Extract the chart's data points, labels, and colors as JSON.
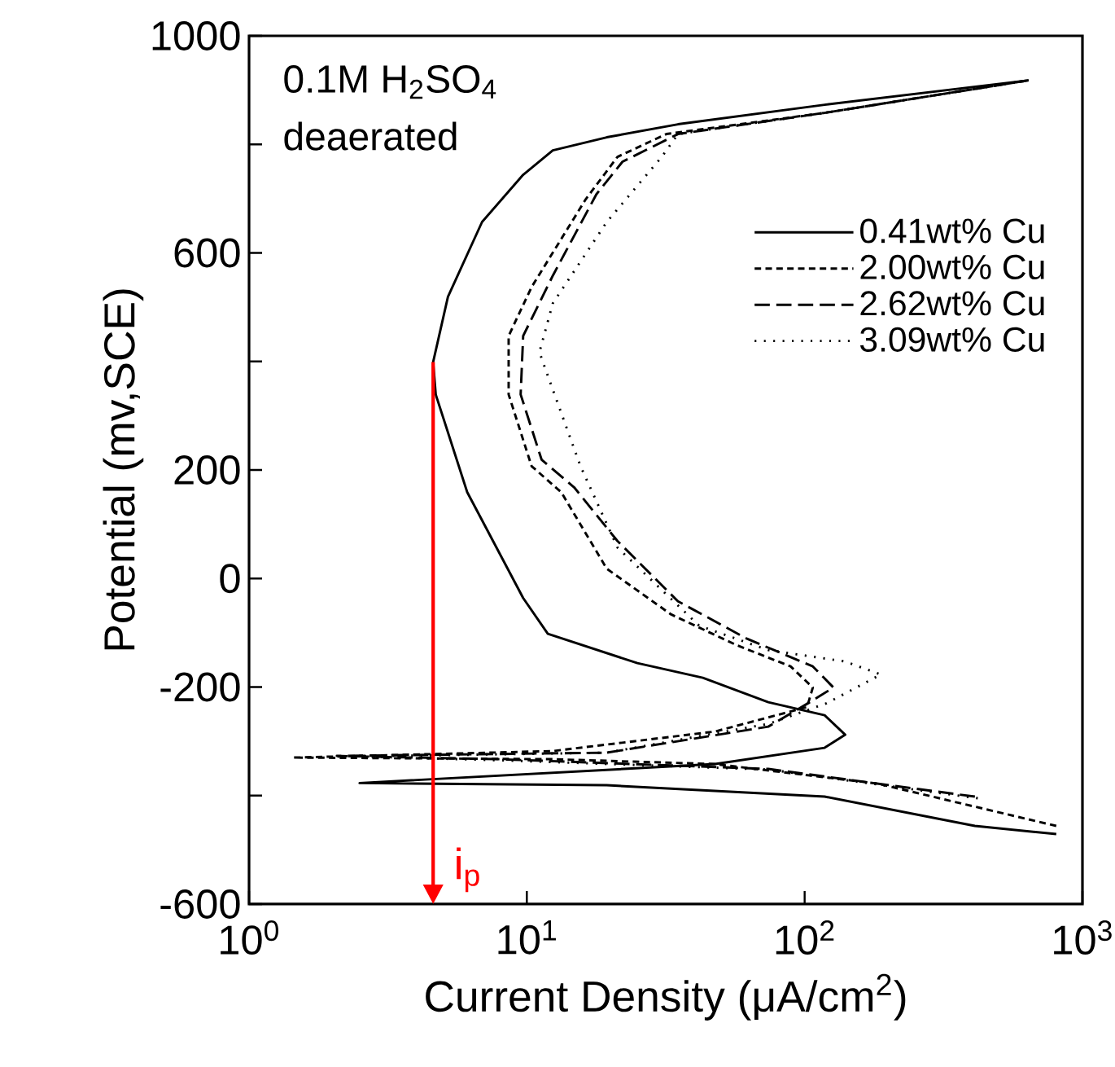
{
  "chart_data": {
    "type": "line",
    "xlabel": "Current Density (μA/cm$^{2}$)",
    "ylabel": "Potential (mv,SCE)",
    "log": "x",
    "grid": false,
    "legend": "top right",
    "marker": "none",
    "xlim": [
      1,
      1000
    ],
    "xticks": [
      {
        "value": 1,
        "label": "10$^{0}$"
      },
      {
        "value": 10,
        "label": "10$^{1}$"
      },
      {
        "value": 100,
        "label": "10$^{2}$"
      },
      {
        "value": 1000,
        "label": "10$^{3}$"
      }
    ],
    "ylim": [
      -600,
      1000
    ],
    "yticks": [
      -600,
      {
        "value": -400,
        "label": null
      },
      -200,
      0,
      200,
      {
        "value": 400,
        "label": null
      },
      600,
      {
        "value": 800,
        "label": null
      },
      1000
    ],
    "annotations": [
      "0.1M H$_{2}$SO$_{4}$",
      "deaerated",
      {
        "text": "i$_{p}$",
        "x": 4.6,
        "y": 399
      }
    ],
    "series": [
      {
        "name": "0.41wt% Cu",
        "color": "#000000",
        "line_style": "solid",
        "x": [
          805,
          410,
          118,
          19.4,
          2.5,
          47.6,
          118,
          140,
          118,
          74,
          43,
          25,
          11.9,
          9.7,
          6.1,
          4.7,
          4.6,
          5.2,
          6.9,
          9.7,
          12.4,
          19.4,
          35,
          118,
          640
        ],
        "values": [
          -471,
          -456,
          -402,
          -381,
          -377,
          -342,
          -312,
          -288,
          -252,
          -228,
          -183,
          -156,
          -102,
          -36,
          159,
          339,
          399,
          519,
          657,
          744,
          789,
          813,
          837,
          873,
          918
        ]
      },
      {
        "name": "2.00wt% Cu",
        "color": "#000000",
        "line_style": "dashed",
        "x": [
          805,
          183,
          47.6,
          12.4,
          1.44,
          12.4,
          47.6,
          102,
          107,
          89,
          57,
          33,
          19.4,
          13.3,
          10.4,
          8.6,
          8.6,
          10.4,
          16.3,
          21.2,
          31.8,
          118,
          640
        ],
        "values": [
          -456,
          -378,
          -342,
          -333,
          -330,
          -318,
          -282,
          -237,
          -201,
          -162,
          -123,
          -66,
          18,
          159,
          207,
          339,
          447,
          537,
          699,
          777,
          819,
          858,
          918
        ]
      },
      {
        "name": "2.62wt% Cu",
        "color": "#000000",
        "line_style": "dashdot",
        "x": [
          410,
          74,
          7.9,
          2.07,
          19.4,
          74,
          102,
          127,
          107,
          62,
          35,
          21.2,
          14.8,
          11.3,
          9.5,
          9.7,
          12.4,
          17.8,
          22.1,
          35,
          118,
          640
        ],
        "values": [
          -402,
          -351,
          -333,
          -327,
          -321,
          -273,
          -231,
          -201,
          -162,
          -111,
          -42,
          69,
          168,
          219,
          339,
          447,
          558,
          708,
          768,
          819,
          858,
          918
        ]
      },
      {
        "name": "3.09wt% Cu",
        "color": "#000000",
        "line_style": "dotted",
        "x": [
          420,
          74,
          8,
          2.5,
          19.4,
          74,
          120,
          188,
          140,
          74,
          41.7,
          21.2,
          15.6,
          12.4,
          11.1,
          12.4,
          19.4,
          30.6,
          35,
          118,
          640
        ],
        "values": [
          -405,
          -352,
          -335,
          -328,
          -321,
          -268,
          -230,
          -177,
          -153,
          -132,
          -87,
          57,
          207,
          348,
          417,
          507,
          657,
          777,
          819,
          858,
          918
        ]
      }
    ]
  }
}
